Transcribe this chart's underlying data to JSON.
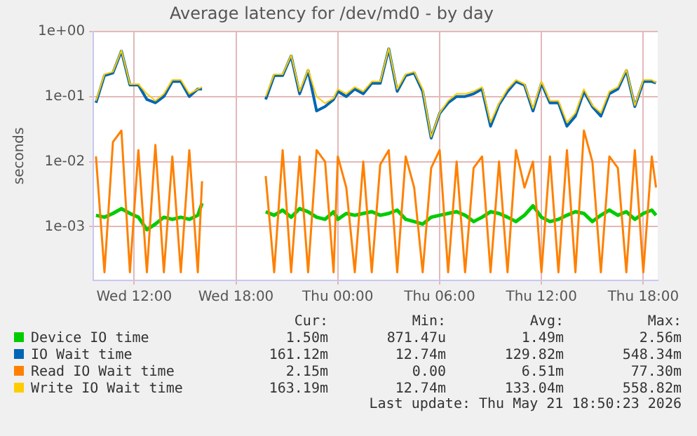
{
  "chart_data": {
    "type": "line",
    "title": "Average latency for /dev/md0 - by day",
    "ylabel": "seconds",
    "log": "y",
    "grid": true,
    "legend": "bottom",
    "marker": "none",
    "line_style": "solid",
    "xlim": [
      "2026-05-20T09:36",
      "2026-05-21T18:51"
    ],
    "xticks": [
      {
        "value": "2026-05-20T12:00",
        "label": "Wed 12:00"
      },
      {
        "value": "2026-05-20T18:00",
        "label": "Wed 18:00"
      },
      {
        "value": "2026-05-21T00:00",
        "label": "Thu 00:00"
      },
      {
        "value": "2026-05-21T06:00",
        "label": "Thu 06:00"
      },
      {
        "value": "2026-05-21T12:00",
        "label": "Thu 12:00"
      },
      {
        "value": "2026-05-21T18:00",
        "label": "Thu 18:00"
      }
    ],
    "ylim": [
      0.00015,
      1
    ],
    "yticks": [
      {
        "value": 0.001,
        "label": "1e-03"
      },
      {
        "value": 0.01,
        "label": "1e-02"
      },
      {
        "value": 0.1,
        "label": "1e-01"
      },
      {
        "value": 1,
        "label": "1e+00"
      }
    ],
    "x": [
      "2026-05-20T09:45",
      "2026-05-20T10:15",
      "2026-05-20T10:45",
      "2026-05-20T11:15",
      "2026-05-20T11:45",
      "2026-05-20T12:15",
      "2026-05-20T12:45",
      "2026-05-20T13:15",
      "2026-05-20T13:45",
      "2026-05-20T14:15",
      "2026-05-20T14:45",
      "2026-05-20T15:15",
      "2026-05-20T15:45",
      "2026-05-20T16:00",
      "2026-05-20T18:00",
      "2026-05-20T19:45",
      "2026-05-20T20:15",
      "2026-05-20T20:45",
      "2026-05-20T21:15",
      "2026-05-20T21:45",
      "2026-05-20T22:15",
      "2026-05-20T22:45",
      "2026-05-20T23:15",
      "2026-05-20T23:45",
      "2026-05-21T00:00",
      "2026-05-21T00:30",
      "2026-05-21T01:00",
      "2026-05-21T01:30",
      "2026-05-21T02:00",
      "2026-05-21T02:30",
      "2026-05-21T03:00",
      "2026-05-21T03:30",
      "2026-05-21T04:00",
      "2026-05-21T04:30",
      "2026-05-21T05:00",
      "2026-05-21T05:30",
      "2026-05-21T06:00",
      "2026-05-21T06:30",
      "2026-05-21T07:00",
      "2026-05-21T07:30",
      "2026-05-21T08:00",
      "2026-05-21T08:30",
      "2026-05-21T09:00",
      "2026-05-21T09:30",
      "2026-05-21T10:00",
      "2026-05-21T10:30",
      "2026-05-21T11:00",
      "2026-05-21T11:30",
      "2026-05-21T12:00",
      "2026-05-21T12:30",
      "2026-05-21T13:00",
      "2026-05-21T13:30",
      "2026-05-21T14:00",
      "2026-05-21T14:30",
      "2026-05-21T15:00",
      "2026-05-21T15:30",
      "2026-05-21T16:00",
      "2026-05-21T16:30",
      "2026-05-21T17:00",
      "2026-05-21T17:30",
      "2026-05-21T18:00",
      "2026-05-21T18:30",
      "2026-05-21T18:45"
    ],
    "series": [
      {
        "name": "Device IO time",
        "color": "#00cc00",
        "values": [
          0.0015,
          0.0014,
          0.0016,
          0.0019,
          0.0016,
          0.0014,
          0.0009,
          0.0011,
          0.0014,
          0.0013,
          0.0014,
          0.0013,
          0.0015,
          0.0023,
          null,
          0.0017,
          0.0015,
          0.0018,
          0.0014,
          0.0019,
          0.0017,
          0.0014,
          0.0013,
          0.0017,
          0.0013,
          0.0016,
          0.0015,
          0.0016,
          0.0017,
          0.0015,
          0.0016,
          0.0018,
          0.0013,
          0.0012,
          0.0011,
          0.0014,
          0.0015,
          0.0016,
          0.0017,
          0.0015,
          0.0012,
          0.0014,
          0.0017,
          0.0016,
          0.0014,
          0.0012,
          0.0015,
          0.0021,
          0.0014,
          0.0012,
          0.0013,
          0.0015,
          0.0017,
          0.0016,
          0.0012,
          0.0015,
          0.0018,
          0.0015,
          0.0017,
          0.0013,
          0.0016,
          0.0018,
          0.0015
        ]
      },
      {
        "name": "IO Wait time",
        "color": "#0066b3",
        "values": [
          0.08,
          0.21,
          0.23,
          0.5,
          0.15,
          0.15,
          0.09,
          0.08,
          0.1,
          0.17,
          0.17,
          0.1,
          0.13,
          0.13,
          null,
          0.09,
          0.21,
          0.21,
          0.42,
          0.11,
          0.25,
          0.06,
          0.07,
          0.09,
          0.12,
          0.1,
          0.13,
          0.11,
          0.16,
          0.16,
          0.54,
          0.12,
          0.21,
          0.23,
          0.12,
          0.023,
          0.055,
          0.08,
          0.1,
          0.1,
          0.11,
          0.13,
          0.035,
          0.075,
          0.12,
          0.17,
          0.15,
          0.06,
          0.16,
          0.08,
          0.08,
          0.035,
          0.05,
          0.12,
          0.07,
          0.05,
          0.11,
          0.13,
          0.25,
          0.07,
          0.17,
          0.17,
          0.161
        ]
      },
      {
        "name": "Read IO Wait time",
        "color": "#ff8000",
        "values": [
          0.012,
          0.0002,
          0.02,
          0.03,
          0.0002,
          0.015,
          0.0002,
          0.018,
          0.0002,
          0.012,
          0.0002,
          0.015,
          0.0002,
          0.005,
          null,
          0.006,
          0.0002,
          0.015,
          0.0002,
          0.012,
          0.0002,
          0.015,
          0.01,
          0.0002,
          0.012,
          0.004,
          0.0002,
          0.01,
          0.0002,
          0.009,
          0.015,
          0.0002,
          0.012,
          0.004,
          0.0002,
          0.008,
          0.015,
          0.0002,
          0.01,
          0.0002,
          0.008,
          0.012,
          0.0002,
          0.01,
          0.0002,
          0.015,
          0.004,
          0.01,
          0.0002,
          0.012,
          0.0002,
          0.015,
          0.0002,
          0.03,
          0.01,
          0.0002,
          0.012,
          0.008,
          0.0002,
          0.015,
          0.0002,
          0.012,
          0.004
        ]
      },
      {
        "name": "Write IO Wait time",
        "color": "#ffcc00",
        "values": [
          0.086,
          0.22,
          0.24,
          0.51,
          0.155,
          0.155,
          0.11,
          0.086,
          0.11,
          0.18,
          0.18,
          0.11,
          0.13,
          0.14,
          null,
          0.1,
          0.22,
          0.22,
          0.43,
          0.12,
          0.26,
          0.1,
          0.079,
          0.094,
          0.13,
          0.11,
          0.14,
          0.12,
          0.17,
          0.17,
          0.55,
          0.13,
          0.22,
          0.24,
          0.13,
          0.024,
          0.056,
          0.086,
          0.11,
          0.11,
          0.12,
          0.14,
          0.04,
          0.079,
          0.13,
          0.18,
          0.155,
          0.066,
          0.17,
          0.086,
          0.086,
          0.04,
          0.056,
          0.13,
          0.073,
          0.056,
          0.12,
          0.14,
          0.26,
          0.073,
          0.18,
          0.18,
          0.163
        ]
      }
    ],
    "annotations": [
      "Cur:",
      "Min:",
      "Avg:",
      "Max:",
      "1.50m",
      "871.47u",
      "1.49m",
      "2.56m",
      "161.12m",
      "12.74m",
      "129.82m",
      "548.34m",
      "2.15m",
      "0.00",
      "6.51m",
      "77.30m",
      "163.19m",
      "12.74m",
      "133.04m",
      "558.82m",
      "Last update: Thu May 21 18:50:23 2026"
    ]
  }
}
